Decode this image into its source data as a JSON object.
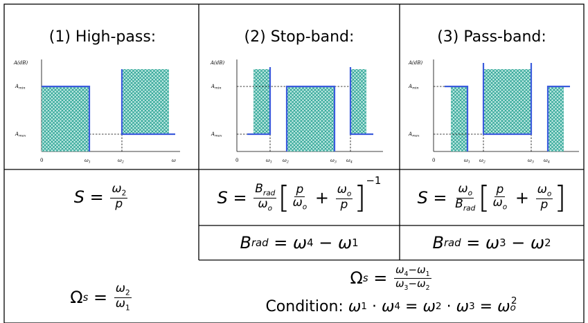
{
  "columns": [
    {
      "title": "(1) High-pass:"
    },
    {
      "title": "(2) Stop-band:"
    },
    {
      "title": "(3) Pass-band:"
    }
  ],
  "graph_labels": {
    "y_axis": "A(dB)",
    "a_min": "A",
    "a_min_sub": "min",
    "a_max": "A",
    "a_max_sub": "max",
    "origin": "0",
    "omega": "ω",
    "w1": "ω1",
    "w2": "ω2",
    "w3": "ω3",
    "w4": "ω4"
  },
  "colors": {
    "line": "#3b5bdc",
    "hatch": "#1f9e8e",
    "hatch_bg": "#bfe8e2",
    "grid": "#000000"
  },
  "formulas": {
    "s_highpass": {
      "lhs": "S",
      "num": "ω2",
      "den": "p"
    },
    "s_stopband": {
      "lhs": "S",
      "num": "Brad",
      "den": "ωo",
      "p": "p",
      "wo": "ωo",
      "exp": "−1"
    },
    "s_passband": {
      "lhs": "S",
      "num": "ωo",
      "den": "Brad",
      "p": "p",
      "wo": "ωo"
    },
    "brad_stopband": "Brad = ω4 − ω1",
    "brad_passband": "Brad = ω3 − ω2",
    "omega_s_highpass": {
      "lhs": "Ωs",
      "num": "ω2",
      "den": "ω1"
    },
    "omega_s_band": {
      "lhs": "Ωs",
      "num": "ω4−ω1",
      "den": "ω3−ω2"
    },
    "condition_label": "Condition:",
    "condition_expr": "ω1 · ω4 = ω2 · ω3 = ωo2"
  }
}
